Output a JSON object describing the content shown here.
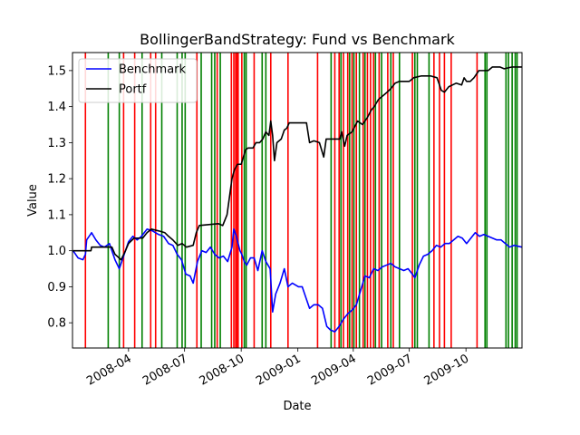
{
  "chart_data": {
    "type": "line",
    "title": "BollingerBandStrategy: Fund vs Benchmark",
    "xlabel": "Date",
    "ylabel": "Value",
    "xlim": [
      "2008-01-01",
      "2009-12-31"
    ],
    "ylim": [
      0.73,
      1.55
    ],
    "x_tick_labels": [
      "2008-04",
      "2008-07",
      "2008-10",
      "2009-01",
      "2009-04",
      "2009-07",
      "2009-10"
    ],
    "x_tick_dates": [
      "2008-04-01",
      "2008-07-01",
      "2008-10-01",
      "2009-01-01",
      "2009-04-01",
      "2009-07-01",
      "2009-10-01"
    ],
    "y_ticks": [
      0.8,
      0.9,
      1.0,
      1.1,
      1.2,
      1.3,
      1.4,
      1.5
    ],
    "y_tick_labels": [
      "0.8",
      "0.9",
      "1.0",
      "1.1",
      "1.2",
      "1.3",
      "1.4",
      "1.5"
    ],
    "legend_position": "top-left",
    "grid": false,
    "series": [
      {
        "name": "Benchmark",
        "color": "#0000ff",
        "points": [
          [
            "2008-01-02",
            1.0
          ],
          [
            "2008-01-10",
            0.98
          ],
          [
            "2008-01-18",
            0.975
          ],
          [
            "2008-01-22",
            0.99
          ],
          [
            "2008-01-24",
            1.03
          ],
          [
            "2008-02-01",
            1.05
          ],
          [
            "2008-02-08",
            1.03
          ],
          [
            "2008-02-15",
            1.015
          ],
          [
            "2008-02-22",
            1.01
          ],
          [
            "2008-03-01",
            1.02
          ],
          [
            "2008-03-10",
            0.975
          ],
          [
            "2008-03-17",
            0.95
          ],
          [
            "2008-03-24",
            0.985
          ],
          [
            "2008-04-01",
            1.025
          ],
          [
            "2008-04-08",
            1.04
          ],
          [
            "2008-04-15",
            1.03
          ],
          [
            "2008-04-22",
            1.04
          ],
          [
            "2008-05-01",
            1.06
          ],
          [
            "2008-05-10",
            1.055
          ],
          [
            "2008-05-20",
            1.045
          ],
          [
            "2008-05-28",
            1.04
          ],
          [
            "2008-06-05",
            1.02
          ],
          [
            "2008-06-12",
            1.015
          ],
          [
            "2008-06-19",
            0.99
          ],
          [
            "2008-06-26",
            0.975
          ],
          [
            "2008-07-03",
            0.935
          ],
          [
            "2008-07-10",
            0.93
          ],
          [
            "2008-07-15",
            0.91
          ],
          [
            "2008-07-22",
            0.97
          ],
          [
            "2008-07-29",
            1.0
          ],
          [
            "2008-08-05",
            0.995
          ],
          [
            "2008-08-12",
            1.01
          ],
          [
            "2008-08-19",
            0.99
          ],
          [
            "2008-08-26",
            0.98
          ],
          [
            "2008-09-02",
            0.985
          ],
          [
            "2008-09-09",
            0.97
          ],
          [
            "2008-09-16",
            1.01
          ],
          [
            "2008-09-19",
            1.06
          ],
          [
            "2008-09-23",
            1.04
          ],
          [
            "2008-09-29",
            1.0
          ],
          [
            "2008-10-02",
            0.99
          ],
          [
            "2008-10-06",
            0.97
          ],
          [
            "2008-10-10",
            0.96
          ],
          [
            "2008-10-16",
            0.98
          ],
          [
            "2008-10-22",
            0.98
          ],
          [
            "2008-10-28",
            0.945
          ],
          [
            "2008-11-04",
            1.0
          ],
          [
            "2008-11-10",
            0.97
          ],
          [
            "2008-11-17",
            0.95
          ],
          [
            "2008-11-21",
            0.83
          ],
          [
            "2008-11-26",
            0.88
          ],
          [
            "2008-12-03",
            0.91
          ],
          [
            "2008-12-10",
            0.95
          ],
          [
            "2008-12-16",
            0.9
          ],
          [
            "2008-12-23",
            0.91
          ],
          [
            "2009-01-02",
            0.9
          ],
          [
            "2009-01-08",
            0.9
          ],
          [
            "2009-01-14",
            0.87
          ],
          [
            "2009-01-20",
            0.84
          ],
          [
            "2009-01-27",
            0.85
          ],
          [
            "2009-02-03",
            0.85
          ],
          [
            "2009-02-10",
            0.84
          ],
          [
            "2009-02-17",
            0.79
          ],
          [
            "2009-02-23",
            0.78
          ],
          [
            "2009-03-02",
            0.775
          ],
          [
            "2009-03-09",
            0.79
          ],
          [
            "2009-03-16",
            0.81
          ],
          [
            "2009-03-23",
            0.825
          ],
          [
            "2009-03-30",
            0.835
          ],
          [
            "2009-04-06",
            0.85
          ],
          [
            "2009-04-13",
            0.89
          ],
          [
            "2009-04-20",
            0.93
          ],
          [
            "2009-04-27",
            0.925
          ],
          [
            "2009-05-04",
            0.95
          ],
          [
            "2009-05-11",
            0.945
          ],
          [
            "2009-05-18",
            0.955
          ],
          [
            "2009-05-25",
            0.96
          ],
          [
            "2009-06-01",
            0.965
          ],
          [
            "2009-06-08",
            0.955
          ],
          [
            "2009-06-15",
            0.95
          ],
          [
            "2009-06-22",
            0.945
          ],
          [
            "2009-06-29",
            0.95
          ],
          [
            "2009-07-06",
            0.935
          ],
          [
            "2009-07-10",
            0.925
          ],
          [
            "2009-07-17",
            0.96
          ],
          [
            "2009-07-24",
            0.985
          ],
          [
            "2009-07-31",
            0.99
          ],
          [
            "2009-08-07",
            1.0
          ],
          [
            "2009-08-14",
            1.015
          ],
          [
            "2009-08-21",
            1.01
          ],
          [
            "2009-08-28",
            1.02
          ],
          [
            "2009-09-04",
            1.02
          ],
          [
            "2009-09-11",
            1.03
          ],
          [
            "2009-09-18",
            1.04
          ],
          [
            "2009-09-25",
            1.035
          ],
          [
            "2009-10-02",
            1.02
          ],
          [
            "2009-10-09",
            1.035
          ],
          [
            "2009-10-16",
            1.05
          ],
          [
            "2009-10-23",
            1.04
          ],
          [
            "2009-10-30",
            1.045
          ],
          [
            "2009-11-06",
            1.04
          ],
          [
            "2009-11-13",
            1.035
          ],
          [
            "2009-11-20",
            1.03
          ],
          [
            "2009-11-27",
            1.03
          ],
          [
            "2009-12-04",
            1.02
          ],
          [
            "2009-12-11",
            1.01
          ],
          [
            "2009-12-18",
            1.015
          ],
          [
            "2009-12-31",
            1.01
          ]
        ]
      },
      {
        "name": "Portf",
        "color": "#000000",
        "points": [
          [
            "2008-01-02",
            1.0
          ],
          [
            "2008-01-31",
            1.0
          ],
          [
            "2008-02-01",
            1.01
          ],
          [
            "2008-03-05",
            1.01
          ],
          [
            "2008-03-10",
            0.99
          ],
          [
            "2008-03-20",
            0.975
          ],
          [
            "2008-03-27",
            1.0
          ],
          [
            "2008-04-01",
            1.02
          ],
          [
            "2008-04-10",
            1.035
          ],
          [
            "2008-04-24",
            1.035
          ],
          [
            "2008-05-01",
            1.05
          ],
          [
            "2008-05-08",
            1.06
          ],
          [
            "2008-05-20",
            1.055
          ],
          [
            "2008-05-30",
            1.05
          ],
          [
            "2008-06-05",
            1.04
          ],
          [
            "2008-06-12",
            1.03
          ],
          [
            "2008-06-20",
            1.015
          ],
          [
            "2008-06-27",
            1.02
          ],
          [
            "2008-07-04",
            1.01
          ],
          [
            "2008-07-15",
            1.015
          ],
          [
            "2008-07-20",
            1.05
          ],
          [
            "2008-07-25",
            1.07
          ],
          [
            "2008-08-25",
            1.075
          ],
          [
            "2008-09-01",
            1.07
          ],
          [
            "2008-09-08",
            1.1
          ],
          [
            "2008-09-12",
            1.15
          ],
          [
            "2008-09-16",
            1.2
          ],
          [
            "2008-09-20",
            1.225
          ],
          [
            "2008-09-25",
            1.24
          ],
          [
            "2008-10-01",
            1.24
          ],
          [
            "2008-10-08",
            1.28
          ],
          [
            "2008-10-12",
            1.285
          ],
          [
            "2008-10-20",
            1.285
          ],
          [
            "2008-10-25",
            1.3
          ],
          [
            "2008-10-31",
            1.3
          ],
          [
            "2008-11-05",
            1.31
          ],
          [
            "2008-11-10",
            1.33
          ],
          [
            "2008-11-15",
            1.32
          ],
          [
            "2008-11-18",
            1.36
          ],
          [
            "2008-11-21",
            1.32
          ],
          [
            "2008-11-24",
            1.25
          ],
          [
            "2008-11-28",
            1.3
          ],
          [
            "2008-12-05",
            1.31
          ],
          [
            "2008-12-10",
            1.335
          ],
          [
            "2008-12-14",
            1.34
          ],
          [
            "2008-12-18",
            1.355
          ],
          [
            "2009-01-15",
            1.355
          ],
          [
            "2009-01-20",
            1.3
          ],
          [
            "2009-01-27",
            1.305
          ],
          [
            "2009-02-05",
            1.3
          ],
          [
            "2009-02-12",
            1.26
          ],
          [
            "2009-02-16",
            1.31
          ],
          [
            "2009-03-10",
            1.31
          ],
          [
            "2009-03-13",
            1.33
          ],
          [
            "2009-03-18",
            1.29
          ],
          [
            "2009-03-22",
            1.32
          ],
          [
            "2009-03-30",
            1.33
          ],
          [
            "2009-04-08",
            1.36
          ],
          [
            "2009-04-16",
            1.35
          ],
          [
            "2009-04-24",
            1.37
          ],
          [
            "2009-04-30",
            1.39
          ],
          [
            "2009-05-05",
            1.4
          ],
          [
            "2009-05-12",
            1.42
          ],
          [
            "2009-05-19",
            1.43
          ],
          [
            "2009-05-26",
            1.44
          ],
          [
            "2009-06-01",
            1.45
          ],
          [
            "2009-06-08",
            1.465
          ],
          [
            "2009-06-15",
            1.47
          ],
          [
            "2009-07-01",
            1.47
          ],
          [
            "2009-07-08",
            1.48
          ],
          [
            "2009-07-20",
            1.485
          ],
          [
            "2009-08-05",
            1.485
          ],
          [
            "2009-08-15",
            1.48
          ],
          [
            "2009-08-22",
            1.445
          ],
          [
            "2009-08-27",
            1.44
          ],
          [
            "2009-09-03",
            1.455
          ],
          [
            "2009-09-15",
            1.465
          ],
          [
            "2009-09-24",
            1.46
          ],
          [
            "2009-09-28",
            1.48
          ],
          [
            "2009-10-02",
            1.47
          ],
          [
            "2009-10-08",
            1.47
          ],
          [
            "2009-10-14",
            1.48
          ],
          [
            "2009-10-22",
            1.5
          ],
          [
            "2009-10-30",
            1.5
          ],
          [
            "2009-11-06",
            1.5
          ],
          [
            "2009-11-13",
            1.51
          ],
          [
            "2009-11-25",
            1.51
          ],
          [
            "2009-12-02",
            1.505
          ],
          [
            "2009-12-15",
            1.51
          ],
          [
            "2009-12-31",
            1.51
          ]
        ]
      }
    ],
    "sell_signal_dates": [
      "2008-01-22",
      "2008-03-24",
      "2008-04-11",
      "2008-05-07",
      "2008-05-15",
      "2008-07-21",
      "2008-08-23",
      "2008-09-15",
      "2008-09-19",
      "2008-09-22",
      "2008-09-24",
      "2008-09-26",
      "2008-10-02",
      "2008-10-22",
      "2008-11-18",
      "2008-12-16",
      "2009-02-02",
      "2009-03-02",
      "2009-03-09",
      "2009-03-16",
      "2009-03-23",
      "2009-03-30",
      "2009-04-06",
      "2009-04-17",
      "2009-04-24",
      "2009-04-29",
      "2009-05-04",
      "2009-05-13",
      "2009-05-27",
      "2009-06-05",
      "2009-07-06",
      "2009-08-10",
      "2009-08-19",
      "2009-08-27",
      "2009-09-07",
      "2009-10-19"
    ],
    "buy_signal_dates": [
      "2008-02-28",
      "2008-03-17",
      "2008-04-23",
      "2008-05-25",
      "2008-06-19",
      "2008-06-27",
      "2008-07-02",
      "2008-07-28",
      "2008-08-14",
      "2008-08-19",
      "2008-08-28",
      "2008-10-06",
      "2008-10-09",
      "2008-11-04",
      "2008-11-10",
      "2009-02-24",
      "2009-03-12",
      "2009-03-26",
      "2009-04-02",
      "2009-04-11",
      "2009-04-20",
      "2009-05-07",
      "2009-05-17",
      "2009-06-01",
      "2009-06-15",
      "2009-07-10",
      "2009-07-14",
      "2009-08-02",
      "2009-11-01",
      "2009-11-04",
      "2009-12-05",
      "2009-12-09",
      "2009-12-15",
      "2009-12-20",
      "2009-12-23"
    ],
    "sell_signal_color": "#ff0000",
    "buy_signal_color": "#008000"
  }
}
